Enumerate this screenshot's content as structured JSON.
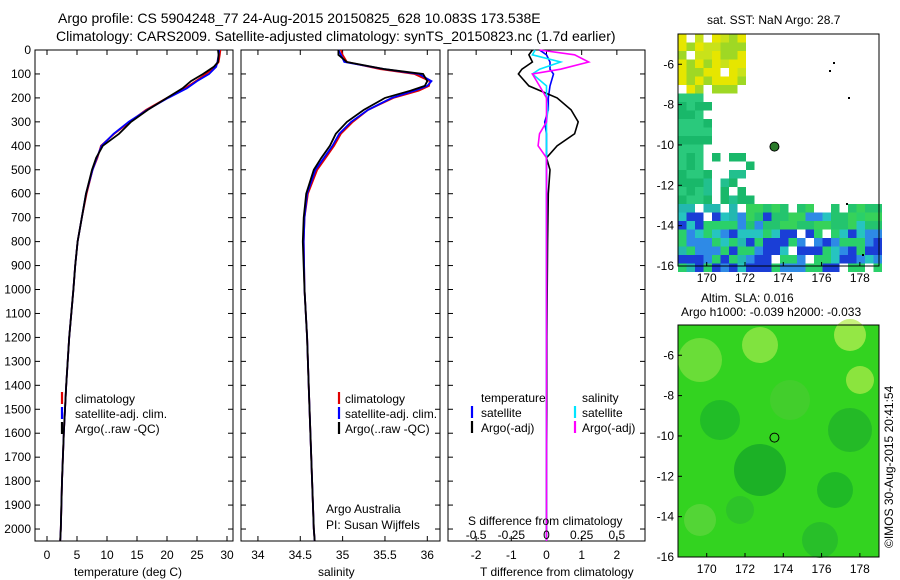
{
  "header": {
    "line1": "Argo profile: CS 5904248_77 24-Aug-2015 20150825_628 10.083S 173.538E",
    "line2": "Climatology: CARS2009. Satellite-adjusted climatology: synTS_20150823.nc (1.7d earlier)"
  },
  "colors": {
    "climatology": "#e00000",
    "satellite": "#0000ff",
    "argo": "#000000",
    "sal_satellite": "#00e5ff",
    "sal_argo": "#ff00ff"
  },
  "legend": {
    "climatology": "climatology",
    "satellite": "satellite-adj. clim.",
    "argo": "Argo(..raw -QC)"
  },
  "credit": {
    "institution": "Argo Australia",
    "pi": "PI: Susan Wijffels"
  },
  "diff_legend": {
    "temp_header": "temperature",
    "sal_header": "salinity",
    "temp_sat": "satellite",
    "temp_argo": "Argo(-adj)",
    "sal_sat": "satellite",
    "sal_argo": "Argo(-adj)"
  },
  "maps": {
    "sst_title": "sat. SST: NaN Argo: 28.7",
    "sla_title1": "Altim. SLA: 0.016",
    "sla_title2": "Argo h1000: -0.039 h2000: -0.033",
    "x_ticks": [
      "170",
      "172",
      "174",
      "176",
      "178"
    ],
    "y_ticks": [
      "-6",
      "-8",
      "-10",
      "-12",
      "-14",
      "-16"
    ]
  },
  "footer": "©IMOS 30-Aug-2015 20:41:54",
  "chart_data": [
    {
      "type": "line",
      "title": "",
      "xlabel": "temperature (deg C)",
      "ylabel": "",
      "xlim": [
        -2,
        31
      ],
      "ylim": [
        2050,
        0
      ],
      "x_ticks": [
        0,
        5,
        10,
        15,
        20,
        25,
        30
      ],
      "y_ticks": [
        0,
        100,
        200,
        300,
        400,
        500,
        600,
        700,
        800,
        900,
        1000,
        1100,
        1200,
        1300,
        1400,
        1500,
        1600,
        1700,
        1800,
        1900,
        2000
      ],
      "depth": [
        0,
        20,
        50,
        70,
        100,
        130,
        160,
        200,
        250,
        300,
        350,
        400,
        450,
        500,
        600,
        700,
        800,
        900,
        1000,
        1200,
        1400,
        1600,
        1800,
        2000,
        2050
      ],
      "series": [
        {
          "name": "climatology",
          "values": [
            28.9,
            28.8,
            28.6,
            28.0,
            26.5,
            24.8,
            23.0,
            20.0,
            16.5,
            13.8,
            11.2,
            9.0,
            8.4,
            7.6,
            6.6,
            5.8,
            5.1,
            4.7,
            4.4,
            3.7,
            3.2,
            2.8,
            2.5,
            2.3,
            2.2
          ]
        },
        {
          "name": "satellite-adj. clim.",
          "values": [
            28.7,
            28.6,
            28.4,
            28.2,
            27.0,
            25.0,
            23.3,
            20.2,
            16.7,
            13.6,
            11.1,
            9.1,
            8.3,
            7.6,
            6.5,
            5.8,
            5.1,
            4.7,
            4.4,
            3.7,
            3.2,
            2.8,
            2.5,
            2.3,
            2.2
          ]
        },
        {
          "name": "Argo(..raw -QC)",
          "values": [
            28.5,
            28.6,
            28.5,
            27.8,
            26.0,
            24.0,
            22.6,
            20.0,
            16.8,
            14.0,
            12.0,
            9.3,
            8.2,
            7.5,
            6.5,
            5.8,
            5.1,
            4.7,
            4.4,
            3.7,
            3.2,
            2.8,
            2.5,
            2.3,
            2.2
          ]
        }
      ]
    },
    {
      "type": "line",
      "title": "",
      "xlabel": "salinity",
      "ylabel": "",
      "xlim": [
        33.8,
        36.15
      ],
      "ylim": [
        2050,
        0
      ],
      "x_ticks": [
        34,
        34.5,
        35,
        35.5,
        36
      ],
      "x_tick_labels": [
        "34",
        "34.5",
        "35",
        "35.5",
        "36"
      ],
      "depth": [
        0,
        20,
        50,
        80,
        100,
        130,
        150,
        170,
        200,
        250,
        300,
        350,
        400,
        450,
        500,
        600,
        700,
        800,
        1000,
        1200,
        1400,
        1600,
        1800,
        2000,
        2050
      ],
      "series": [
        {
          "name": "climatology",
          "values": [
            34.98,
            35.0,
            35.05,
            35.45,
            35.85,
            36.03,
            36.02,
            35.9,
            35.6,
            35.3,
            35.12,
            34.98,
            34.9,
            34.8,
            34.7,
            34.59,
            34.55,
            34.54,
            34.55,
            34.58,
            34.6,
            34.62,
            34.64,
            34.66,
            34.67
          ]
        },
        {
          "name": "satellite-adj. clim.",
          "values": [
            34.95,
            34.98,
            35.02,
            35.5,
            35.9,
            36.05,
            36.0,
            35.85,
            35.58,
            35.3,
            35.1,
            34.96,
            34.88,
            34.78,
            34.68,
            34.58,
            34.55,
            34.54,
            34.55,
            34.58,
            34.6,
            34.62,
            34.64,
            34.66,
            34.67
          ]
        },
        {
          "name": "Argo(..raw -QC)",
          "values": [
            34.95,
            34.95,
            35.05,
            35.5,
            35.95,
            36.0,
            35.97,
            35.8,
            35.5,
            35.25,
            35.05,
            34.92,
            34.85,
            34.75,
            34.66,
            34.57,
            34.54,
            34.53,
            34.55,
            34.58,
            34.6,
            34.62,
            34.64,
            34.66,
            34.67
          ]
        }
      ],
      "credit": [
        "Argo Australia",
        "PI: Susan Wijffels"
      ]
    },
    {
      "type": "line",
      "title": "",
      "xlabel": "T difference from climatology",
      "secondary_xlabel": "S difference from climatology",
      "xlim": [
        -2.8,
        2.8
      ],
      "ylim": [
        2050,
        0
      ],
      "x_ticks": [
        -2,
        -1,
        0,
        1,
        2
      ],
      "s_ticks": [
        -0.5,
        -0.25,
        0,
        0.25,
        0.5
      ],
      "depth": [
        0,
        20,
        50,
        80,
        100,
        150,
        200,
        250,
        300,
        350,
        400,
        450,
        500,
        600,
        800,
        1000,
        1200,
        1500,
        1800,
        2000,
        2050
      ],
      "series": [
        {
          "name": "temperature satellite",
          "values": [
            -0.2,
            0.0,
            0.1,
            0.1,
            0.2,
            0.1,
            0.05,
            0.05,
            -0.05,
            0.0,
            0.0,
            0.0,
            0.0,
            0.0,
            0.0,
            0.0,
            0.0,
            0.0,
            0.0,
            0.0,
            0.0
          ]
        },
        {
          "name": "temperature Argo(-adj)",
          "values": [
            -0.4,
            -0.5,
            -0.4,
            -0.7,
            -0.8,
            -0.5,
            0.3,
            0.7,
            0.9,
            0.8,
            0.3,
            0.0,
            0.1,
            0.05,
            0.03,
            0.02,
            0.01,
            0.01,
            0.0,
            0.0,
            0.0
          ]
        },
        {
          "name": "salinity satellite",
          "values": [
            -0.08,
            -0.1,
            0.1,
            -0.05,
            -0.1,
            0.0,
            0.0,
            0.01,
            0.0,
            0.0,
            0.0,
            0.0,
            0.0,
            0.0,
            0.0,
            0.0,
            0.0,
            0.0,
            0.0,
            0.0,
            0.0
          ]
        },
        {
          "name": "salinity Argo(-adj)",
          "values": [
            -0.05,
            0.2,
            0.3,
            0.1,
            -0.1,
            -0.05,
            0.0,
            0.0,
            0.0,
            -0.05,
            -0.06,
            0.0,
            0.0,
            0.0,
            0.0,
            0.0,
            0.0,
            0.0,
            0.0,
            0.0,
            0.0
          ]
        }
      ]
    },
    {
      "type": "heatmap",
      "title": "sat. SST: NaN Argo: 28.7",
      "xlim": [
        168.5,
        179
      ],
      "ylim": [
        -16,
        -4.5
      ],
      "x_ticks": [
        170,
        172,
        174,
        176,
        178
      ],
      "y_ticks": [
        -6,
        -8,
        -10,
        -12,
        -14,
        -16
      ],
      "marker": {
        "lon": 173.538,
        "lat": -10.083
      }
    },
    {
      "type": "heatmap",
      "title": "Altim. SLA: 0.016 / Argo h1000: -0.039 h2000: -0.033",
      "xlim": [
        168.5,
        179
      ],
      "ylim": [
        -16,
        -4.5
      ],
      "x_ticks": [
        170,
        172,
        174,
        176,
        178
      ],
      "y_ticks": [
        -6,
        -8,
        -10,
        -12,
        -14,
        -16
      ],
      "marker": {
        "lon": 173.538,
        "lat": -10.083
      }
    }
  ]
}
